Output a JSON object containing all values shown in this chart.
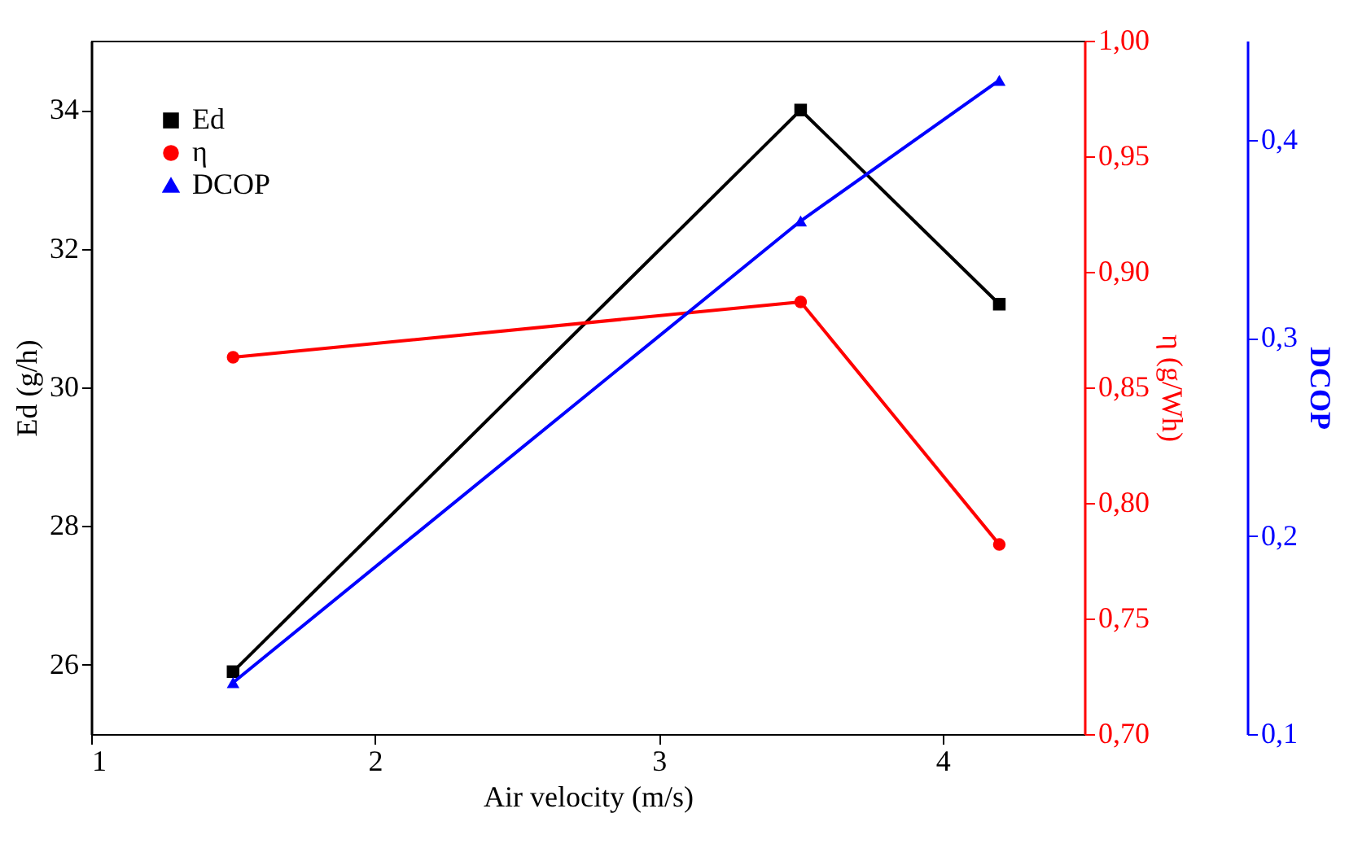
{
  "chart_data": {
    "type": "line",
    "xlabel": "Air velocity (m/s)",
    "ylabel": "Ed (g/h)",
    "y2label": "η (g/Wh)",
    "y3label": "DCOP",
    "x": [
      1.5,
      3.5,
      4.2
    ],
    "xlim": [
      1,
      4.5
    ],
    "xticks": [
      1,
      2,
      3,
      4
    ],
    "ylim": [
      25,
      35
    ],
    "yticks": [
      26,
      28,
      30,
      32,
      34
    ],
    "y2lim": [
      0.7,
      1.0
    ],
    "y2ticks": [
      {
        "value": 0.7,
        "label": "0,70"
      },
      {
        "value": 0.75,
        "label": "0,75"
      },
      {
        "value": 0.8,
        "label": "0,80"
      },
      {
        "value": 0.85,
        "label": "0,85"
      },
      {
        "value": 0.9,
        "label": "0,90"
      },
      {
        "value": 0.95,
        "label": "0,95"
      },
      {
        "value": 1.0,
        "label": "1,00"
      }
    ],
    "y3lim": [
      0.1,
      0.45
    ],
    "y3ticks": [
      {
        "value": 0.1,
        "label": "0,1"
      },
      {
        "value": 0.2,
        "label": "0,2"
      },
      {
        "value": 0.3,
        "label": "0,3"
      },
      {
        "value": 0.4,
        "label": "0,4"
      }
    ],
    "legend": "top left",
    "grid": false,
    "series": [
      {
        "name": "Ed",
        "color": "#000000",
        "marker": "square",
        "values": [
          25.9,
          34.0,
          31.2
        ]
      },
      {
        "name": "η",
        "color": "#ff0000",
        "marker": "circle",
        "axis": "y2",
        "values": [
          0.863,
          0.887,
          0.782
        ]
      },
      {
        "name": "DCOP",
        "color": "#0000ff",
        "marker": "triangle",
        "axis": "y3",
        "values": [
          0.126,
          0.359,
          0.43
        ]
      }
    ]
  }
}
